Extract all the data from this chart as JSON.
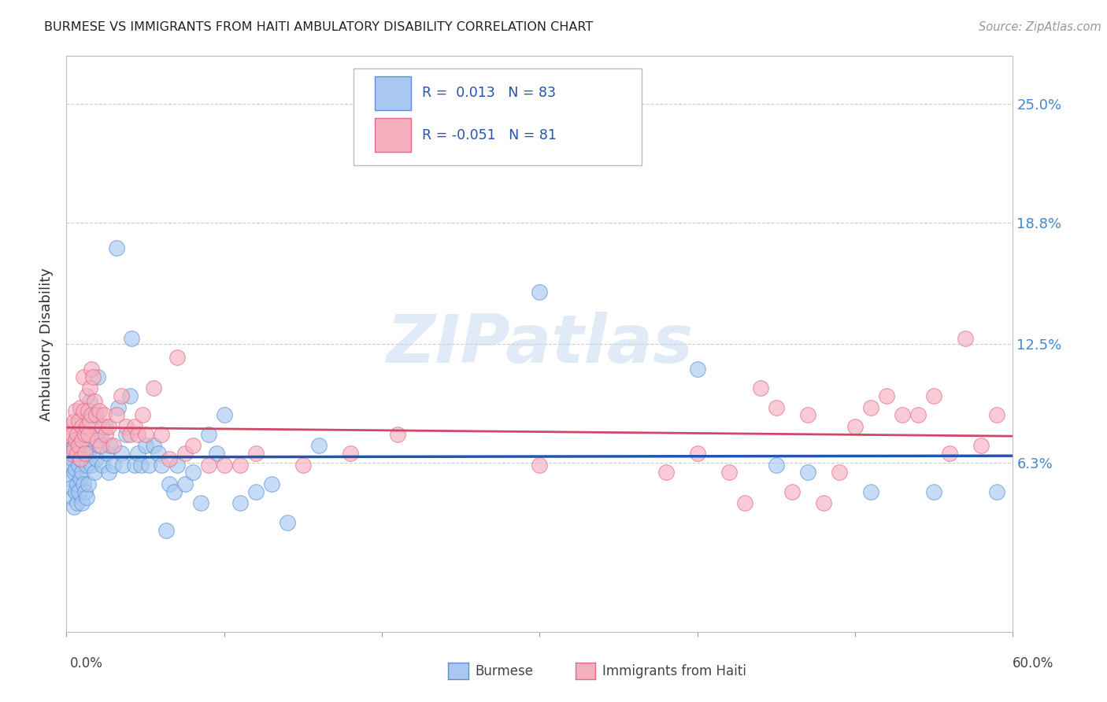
{
  "title": "BURMESE VS IMMIGRANTS FROM HAITI AMBULATORY DISABILITY CORRELATION CHART",
  "source": "Source: ZipAtlas.com",
  "ylabel": "Ambulatory Disability",
  "series1_label": "Burmese",
  "series2_label": "Immigrants from Haiti",
  "series1_R": "0.013",
  "series1_N": "83",
  "series2_R": "-0.051",
  "series2_N": "81",
  "series1_color": "#a8c8f0",
  "series2_color": "#f5b0c0",
  "series1_edge": "#5a90d8",
  "series2_edge": "#e06888",
  "trend1_color": "#2255b0",
  "trend2_color": "#d04868",
  "ytick_labels": [
    "6.3%",
    "12.5%",
    "18.8%",
    "25.0%"
  ],
  "ytick_values": [
    0.063,
    0.125,
    0.188,
    0.25
  ],
  "xlim": [
    0.0,
    0.6
  ],
  "ylim": [
    -0.025,
    0.275
  ],
  "grid_color": "#cccccc",
  "watermark": "ZIPatlas",
  "watermark_color": "#c5d8f0",
  "background_color": "#ffffff",
  "title_color": "#222222",
  "source_color": "#999999",
  "right_label_color": "#4488cc",
  "legend_border": "#bbbbbb",
  "legend_text_color": "#2255aa",
  "bottom_label_color": "#444444",
  "series1_x": [
    0.001,
    0.002,
    0.002,
    0.003,
    0.003,
    0.004,
    0.004,
    0.005,
    0.005,
    0.005,
    0.006,
    0.006,
    0.006,
    0.007,
    0.007,
    0.007,
    0.008,
    0.008,
    0.008,
    0.009,
    0.009,
    0.01,
    0.01,
    0.01,
    0.011,
    0.011,
    0.012,
    0.012,
    0.013,
    0.013,
    0.014,
    0.014,
    0.015,
    0.016,
    0.017,
    0.018,
    0.019,
    0.02,
    0.021,
    0.022,
    0.023,
    0.025,
    0.026,
    0.027,
    0.028,
    0.03,
    0.032,
    0.033,
    0.035,
    0.036,
    0.038,
    0.04,
    0.041,
    0.043,
    0.045,
    0.047,
    0.05,
    0.052,
    0.055,
    0.058,
    0.06,
    0.063,
    0.065,
    0.068,
    0.07,
    0.075,
    0.08,
    0.085,
    0.09,
    0.095,
    0.1,
    0.11,
    0.12,
    0.13,
    0.14,
    0.16,
    0.3,
    0.4,
    0.45,
    0.47,
    0.51,
    0.55,
    0.59
  ],
  "series1_y": [
    0.068,
    0.062,
    0.055,
    0.07,
    0.05,
    0.065,
    0.045,
    0.072,
    0.058,
    0.04,
    0.075,
    0.06,
    0.048,
    0.07,
    0.052,
    0.042,
    0.078,
    0.062,
    0.048,
    0.065,
    0.055,
    0.072,
    0.058,
    0.042,
    0.068,
    0.052,
    0.07,
    0.048,
    0.062,
    0.045,
    0.068,
    0.052,
    0.095,
    0.062,
    0.088,
    0.058,
    0.065,
    0.108,
    0.072,
    0.078,
    0.062,
    0.082,
    0.068,
    0.058,
    0.072,
    0.062,
    0.175,
    0.092,
    0.068,
    0.062,
    0.078,
    0.098,
    0.128,
    0.062,
    0.068,
    0.062,
    0.072,
    0.062,
    0.072,
    0.068,
    0.062,
    0.028,
    0.052,
    0.048,
    0.062,
    0.052,
    0.058,
    0.042,
    0.078,
    0.068,
    0.088,
    0.042,
    0.048,
    0.052,
    0.032,
    0.072,
    0.152,
    0.112,
    0.062,
    0.058,
    0.048,
    0.048,
    0.048
  ],
  "series2_x": [
    0.001,
    0.002,
    0.003,
    0.004,
    0.005,
    0.005,
    0.006,
    0.006,
    0.007,
    0.007,
    0.008,
    0.008,
    0.009,
    0.009,
    0.01,
    0.01,
    0.011,
    0.011,
    0.012,
    0.012,
    0.013,
    0.013,
    0.014,
    0.014,
    0.015,
    0.015,
    0.016,
    0.016,
    0.017,
    0.018,
    0.019,
    0.02,
    0.021,
    0.022,
    0.023,
    0.024,
    0.025,
    0.027,
    0.03,
    0.032,
    0.035,
    0.038,
    0.04,
    0.043,
    0.045,
    0.048,
    0.05,
    0.055,
    0.06,
    0.065,
    0.07,
    0.075,
    0.08,
    0.09,
    0.1,
    0.11,
    0.12,
    0.15,
    0.18,
    0.21,
    0.3,
    0.38,
    0.4,
    0.42,
    0.43,
    0.44,
    0.45,
    0.46,
    0.47,
    0.48,
    0.49,
    0.5,
    0.51,
    0.52,
    0.53,
    0.54,
    0.55,
    0.56,
    0.57,
    0.58,
    0.59
  ],
  "series2_y": [
    0.078,
    0.082,
    0.068,
    0.078,
    0.085,
    0.07,
    0.075,
    0.09,
    0.078,
    0.068,
    0.085,
    0.072,
    0.092,
    0.065,
    0.082,
    0.075,
    0.108,
    0.09,
    0.078,
    0.068,
    0.098,
    0.082,
    0.078,
    0.09,
    0.102,
    0.085,
    0.112,
    0.088,
    0.108,
    0.095,
    0.088,
    0.075,
    0.09,
    0.072,
    0.082,
    0.088,
    0.078,
    0.082,
    0.072,
    0.088,
    0.098,
    0.082,
    0.078,
    0.082,
    0.078,
    0.088,
    0.078,
    0.102,
    0.078,
    0.065,
    0.118,
    0.068,
    0.072,
    0.062,
    0.062,
    0.062,
    0.068,
    0.062,
    0.068,
    0.078,
    0.062,
    0.058,
    0.068,
    0.058,
    0.042,
    0.102,
    0.092,
    0.048,
    0.088,
    0.042,
    0.058,
    0.082,
    0.092,
    0.098,
    0.088,
    0.088,
    0.098,
    0.068,
    0.128,
    0.072,
    0.088
  ]
}
